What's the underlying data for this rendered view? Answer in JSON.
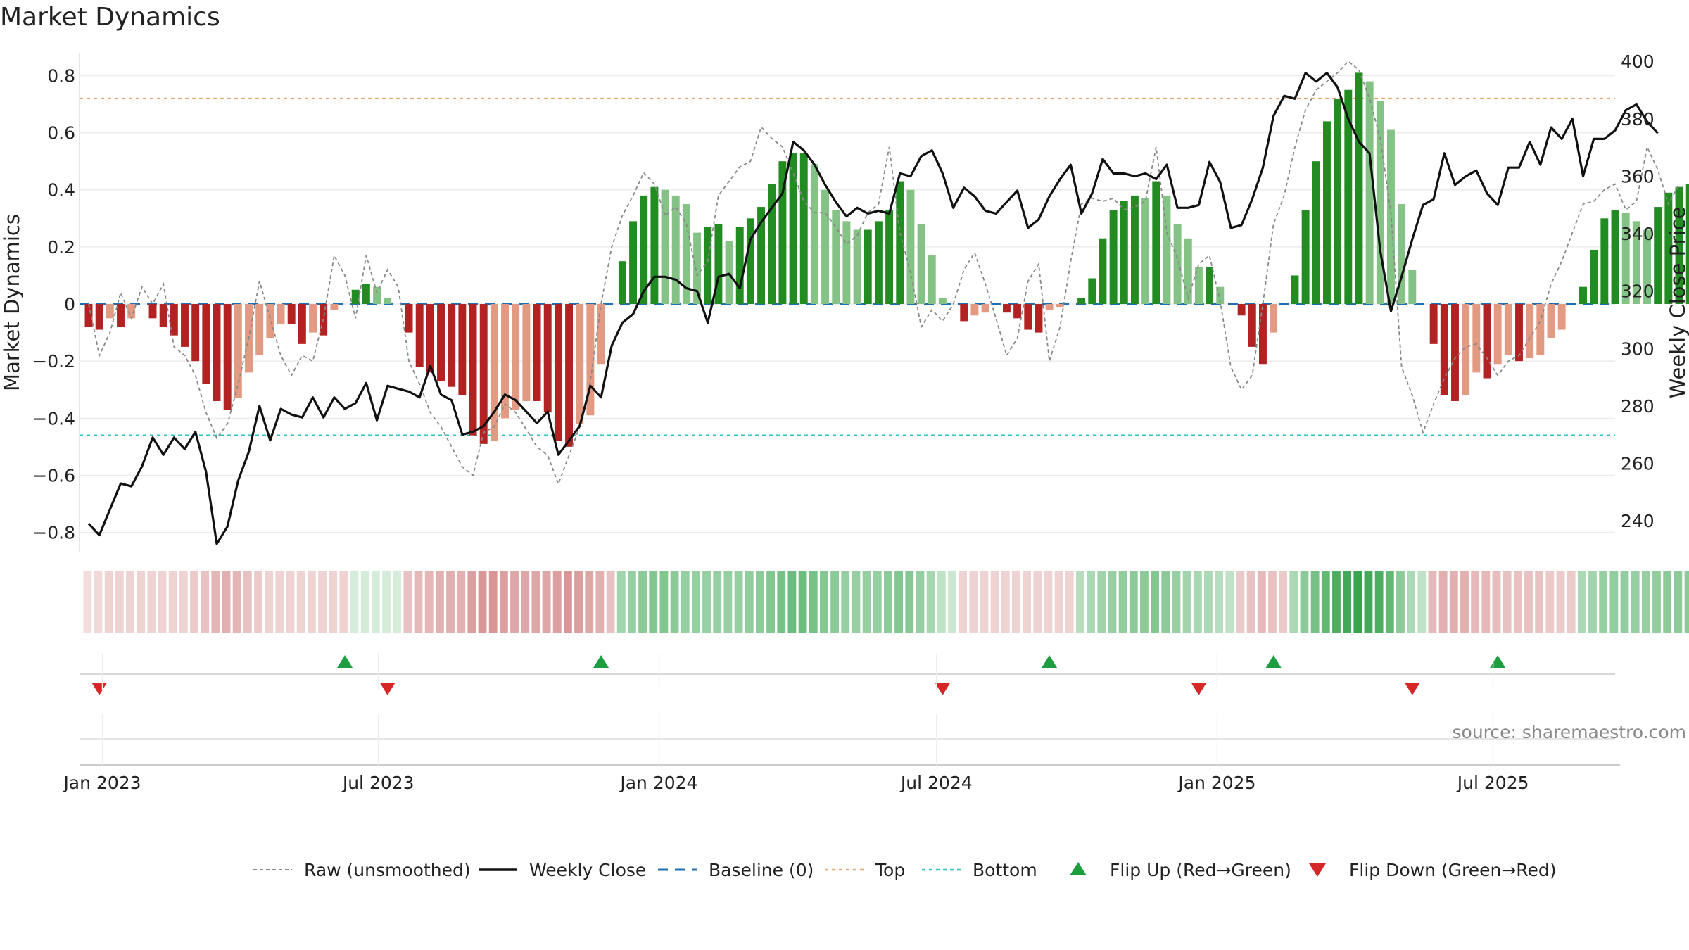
{
  "title": "Market Dynamics",
  "source": "source: sharemaestro.com",
  "colors": {
    "strong_green": "#228b22",
    "light_green": "#85c285",
    "strong_red": "#b22222",
    "light_red": "#e39a82",
    "top_line": "#e9a86a",
    "bottom_line": "#2ec4c4",
    "baseline": "#1f6fb4",
    "raw_line": "#888888",
    "close_line": "#111111",
    "flip_up": "#1e9e3e",
    "flip_down": "#d62728"
  },
  "legend": [
    {
      "key": "raw",
      "label": "Raw (unsmoothed)"
    },
    {
      "key": "close",
      "label": "Weekly Close"
    },
    {
      "key": "baseline",
      "label": "Baseline (0)"
    },
    {
      "key": "top",
      "label": "Top"
    },
    {
      "key": "bottom",
      "label": "Bottom"
    },
    {
      "key": "flipup",
      "label": "Flip Up (Red→Green)"
    },
    {
      "key": "flipdown",
      "label": "Flip Down (Green→Red)"
    }
  ],
  "chart_data": {
    "type": "bar",
    "title": "Market Dynamics",
    "xlabel": "",
    "ylabel": "Market Dynamics",
    "y2label": "Weekly Close Price",
    "ylim": [
      -0.87,
      0.88
    ],
    "y2lim": [
      229.0,
      403.0
    ],
    "xlim": [
      "2022-12-17",
      "2025-09-19"
    ],
    "y_ticks": [
      "−0.8",
      "−0.6",
      "−0.4",
      "−0.2",
      "0",
      "0.2",
      "0.4",
      "0.6",
      "0.8"
    ],
    "y_tick_values": [
      -0.8,
      -0.6,
      -0.4,
      -0.2,
      0,
      0.2,
      0.4,
      0.6,
      0.8
    ],
    "y2_ticks": [
      "240",
      "260",
      "280",
      "300",
      "320",
      "340",
      "360",
      "380",
      "400"
    ],
    "y2_tick_values": [
      240,
      260,
      280,
      300,
      320,
      340,
      360,
      380,
      400
    ],
    "x_ticks": [
      "Jan 2023",
      "Jul 2023",
      "Jan 2024",
      "Jul 2024",
      "Jan 2025",
      "Jul 2025"
    ],
    "x_tick_dates": [
      "2023-01-01",
      "2023-07-01",
      "2024-01-01",
      "2024-07-01",
      "2025-01-01",
      "2025-07-01"
    ],
    "top_level": 0.72,
    "bottom_level": -0.46,
    "baseline": 0,
    "start_date": "2022-12-23",
    "week_step_days": 7,
    "dynamics": [
      -0.08,
      -0.09,
      -0.05,
      -0.08,
      -0.05,
      0.0,
      -0.05,
      -0.08,
      -0.11,
      -0.15,
      -0.2,
      -0.28,
      -0.34,
      -0.37,
      -0.33,
      -0.24,
      -0.18,
      -0.12,
      -0.07,
      -0.07,
      -0.14,
      -0.1,
      -0.11,
      -0.02,
      0.0,
      0.05,
      0.07,
      0.06,
      0.02,
      0.0,
      -0.1,
      -0.22,
      -0.24,
      -0.27,
      -0.29,
      -0.32,
      -0.46,
      -0.49,
      -0.48,
      -0.4,
      -0.37,
      -0.34,
      -0.34,
      -0.38,
      -0.48,
      -0.5,
      -0.42,
      -0.39,
      -0.21,
      0.0,
      0.15,
      0.29,
      0.38,
      0.41,
      0.4,
      0.38,
      0.35,
      0.25,
      0.27,
      0.28,
      0.22,
      0.27,
      0.3,
      0.34,
      0.42,
      0.5,
      0.53,
      0.53,
      0.49,
      0.4,
      0.33,
      0.29,
      0.26,
      0.26,
      0.29,
      0.33,
      0.43,
      0.4,
      0.28,
      0.17,
      0.02,
      0.0,
      -0.06,
      -0.04,
      -0.03,
      0.0,
      -0.03,
      -0.05,
      -0.09,
      -0.1,
      -0.02,
      -0.01,
      0.0,
      0.02,
      0.09,
      0.23,
      0.33,
      0.36,
      0.38,
      0.37,
      0.43,
      0.38,
      0.28,
      0.23,
      0.13,
      0.13,
      0.06,
      0.0,
      -0.04,
      -0.15,
      -0.21,
      -0.1,
      0.0,
      0.1,
      0.33,
      0.5,
      0.64,
      0.72,
      0.75,
      0.81,
      0.78,
      0.71,
      0.61,
      0.35,
      0.12,
      0.0,
      -0.14,
      -0.32,
      -0.34,
      -0.32,
      -0.24,
      -0.26,
      -0.21,
      -0.18,
      -0.2,
      -0.19,
      -0.18,
      -0.12,
      -0.09,
      0.0,
      0.06,
      0.19,
      0.3,
      0.33,
      0.32,
      0.29,
      0.26,
      0.34,
      0.39,
      0.41,
      0.42
    ],
    "series": [
      {
        "name": "Raw (unsmoothed)",
        "values": [
          0.0,
          -0.18,
          -0.1,
          0.04,
          -0.05,
          0.06,
          0.0,
          0.07,
          -0.15,
          -0.18,
          -0.25,
          -0.38,
          -0.47,
          -0.42,
          -0.28,
          -0.12,
          0.08,
          -0.05,
          -0.18,
          -0.25,
          -0.18,
          -0.2,
          -0.05,
          0.17,
          0.1,
          -0.05,
          0.17,
          0.04,
          0.12,
          0.06,
          -0.2,
          -0.28,
          -0.38,
          -0.43,
          -0.5,
          -0.57,
          -0.6,
          -0.45,
          -0.43,
          -0.35,
          -0.38,
          -0.44,
          -0.5,
          -0.53,
          -0.63,
          -0.53,
          -0.43,
          -0.27,
          0.0,
          0.2,
          0.31,
          0.38,
          0.46,
          0.42,
          0.31,
          0.34,
          0.28,
          0.1,
          0.15,
          0.38,
          0.43,
          0.48,
          0.5,
          0.62,
          0.58,
          0.55,
          0.46,
          0.36,
          0.32,
          0.32,
          0.27,
          0.21,
          0.24,
          0.32,
          0.35,
          0.55,
          0.25,
          0.11,
          -0.08,
          -0.02,
          -0.06,
          0.0,
          0.12,
          0.18,
          0.07,
          -0.05,
          -0.18,
          -0.12,
          0.08,
          0.14,
          -0.2,
          -0.08,
          0.15,
          0.35,
          0.37,
          0.36,
          0.37,
          0.33,
          0.34,
          0.36,
          0.55,
          0.25,
          0.16,
          0.02,
          0.14,
          0.17,
          0.01,
          -0.22,
          -0.3,
          -0.25,
          0.0,
          0.28,
          0.38,
          0.55,
          0.68,
          0.75,
          0.78,
          0.81,
          0.85,
          0.82,
          0.72,
          0.58,
          0.32,
          -0.22,
          -0.32,
          -0.45,
          -0.35,
          -0.26,
          -0.19,
          -0.15,
          -0.14,
          -0.19,
          -0.25,
          -0.2,
          -0.18,
          -0.12,
          -0.06,
          0.07,
          0.15,
          0.25,
          0.35,
          0.36,
          0.4,
          0.42,
          0.33,
          0.36,
          0.55,
          0.47,
          0.35,
          0.42
        ]
      },
      {
        "name": "Weekly Close",
        "values": [
          239,
          235,
          244,
          253,
          252,
          259,
          269,
          263,
          269,
          265,
          271,
          257,
          232,
          238,
          254,
          264,
          280,
          268,
          279,
          277,
          276,
          283,
          276,
          283,
          279,
          281,
          288,
          275,
          287,
          286,
          285,
          283,
          294,
          284,
          282,
          270,
          271,
          273,
          278,
          284,
          282,
          278,
          274,
          278,
          263,
          268,
          273,
          287,
          283,
          301,
          309,
          312,
          320,
          325,
          325,
          324,
          321,
          320,
          309,
          325,
          326,
          321,
          338,
          344,
          349,
          354,
          372,
          369,
          364,
          357,
          351,
          346,
          349,
          347,
          348,
          347,
          361,
          360,
          367,
          369,
          361,
          349,
          356,
          353,
          348,
          347,
          351,
          355,
          342,
          345,
          353,
          359,
          364,
          347,
          354,
          366,
          361,
          361,
          360,
          361,
          359,
          364,
          349,
          349,
          350,
          365,
          358,
          342,
          343,
          352,
          363,
          381,
          388,
          387,
          396,
          393,
          396,
          391,
          380,
          372,
          368,
          334,
          313,
          325,
          338,
          350,
          352,
          368,
          357,
          360,
          362,
          354,
          350,
          363,
          363,
          372,
          364,
          377,
          373,
          380,
          360,
          373,
          373,
          376,
          383,
          385,
          379,
          375
        ]
      }
    ],
    "heat_strip": [
      0.2,
      0.22,
      0.25,
      0.25,
      0.25,
      0.25,
      0.25,
      0.25,
      0.25,
      0.25,
      0.3,
      0.35,
      0.42,
      0.45,
      0.42,
      0.35,
      0.3,
      0.25,
      0.25,
      0.25,
      0.25,
      0.25,
      0.25,
      0.25,
      0.25,
      0.2,
      0.2,
      0.2,
      0.2,
      0.2,
      0.35,
      0.4,
      0.42,
      0.45,
      0.45,
      0.45,
      0.55,
      0.6,
      0.6,
      0.55,
      0.5,
      0.5,
      0.5,
      0.5,
      0.55,
      0.6,
      0.55,
      0.5,
      0.45,
      0.35,
      0.45,
      0.5,
      0.55,
      0.6,
      0.6,
      0.55,
      0.5,
      0.5,
      0.5,
      0.5,
      0.5,
      0.5,
      0.52,
      0.55,
      0.6,
      0.65,
      0.7,
      0.7,
      0.65,
      0.58,
      0.55,
      0.5,
      0.5,
      0.5,
      0.5,
      0.55,
      0.6,
      0.58,
      0.5,
      0.42,
      0.3,
      0.25,
      0.25,
      0.25,
      0.25,
      0.25,
      0.25,
      0.25,
      0.25,
      0.25,
      0.25,
      0.25,
      0.25,
      0.35,
      0.4,
      0.45,
      0.5,
      0.52,
      0.55,
      0.55,
      0.6,
      0.55,
      0.5,
      0.45,
      0.42,
      0.4,
      0.35,
      0.3,
      0.3,
      0.35,
      0.4,
      0.35,
      0.3,
      0.4,
      0.55,
      0.65,
      0.75,
      0.85,
      0.9,
      0.95,
      0.9,
      0.85,
      0.75,
      0.55,
      0.4,
      0.3,
      0.4,
      0.45,
      0.45,
      0.45,
      0.4,
      0.4,
      0.38,
      0.35,
      0.35,
      0.35,
      0.35,
      0.3,
      0.3,
      0.3,
      0.4,
      0.45,
      0.5,
      0.52,
      0.52,
      0.5,
      0.5,
      0.52,
      0.55,
      0.55,
      0.55
    ],
    "flip_up": [
      "2023-06-09",
      "2023-11-24",
      "2024-09-13",
      "2025-02-07",
      "2025-07-04"
    ],
    "flip_down": [
      "2022-12-30",
      "2023-07-07",
      "2024-07-05",
      "2024-12-20",
      "2025-05-09"
    ]
  }
}
